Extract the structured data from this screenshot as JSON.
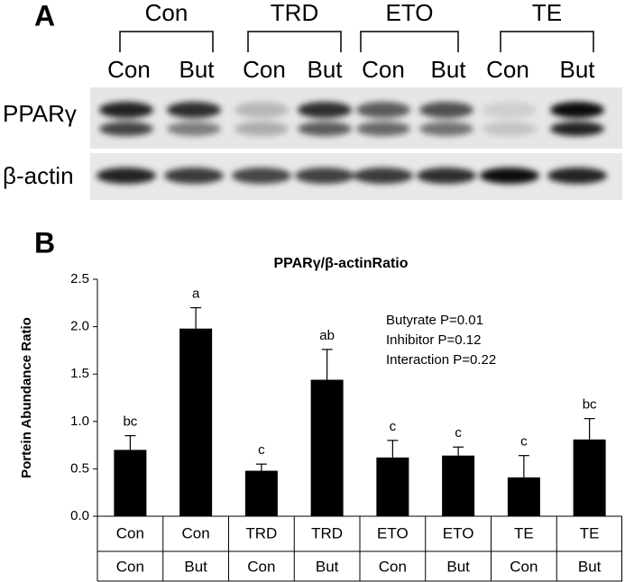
{
  "panel_a": {
    "label": "A",
    "groups": [
      {
        "label": "Con",
        "lanes": [
          "Con",
          "But"
        ]
      },
      {
        "label": "TRD",
        "lanes": [
          "Con",
          "But"
        ]
      },
      {
        "label": "ETO",
        "lanes": [
          "Con",
          "But"
        ]
      },
      {
        "label": "TE",
        "lanes": [
          "Con",
          "But"
        ]
      }
    ],
    "rows": [
      "PPARγ",
      "β-actin"
    ]
  },
  "chart_data": {
    "type": "bar",
    "panel_label": "B",
    "title": "PPARγ/β-actinRatio",
    "y_label": "Portein Abundance Ratio",
    "categories": [
      "Con",
      "Con",
      "TRD",
      "TRD",
      "ETO",
      "ETO",
      "TE",
      "TE"
    ],
    "categories2": [
      "Con",
      "But",
      "Con",
      "But",
      "Con",
      "But",
      "Con",
      "But"
    ],
    "values": [
      0.7,
      1.98,
      0.48,
      1.44,
      0.62,
      0.64,
      0.41,
      0.81
    ],
    "errors": [
      0.15,
      0.22,
      0.07,
      0.32,
      0.18,
      0.09,
      0.23,
      0.22
    ],
    "letters": [
      "bc",
      "a",
      "c",
      "ab",
      "c",
      "c",
      "c",
      "bc"
    ],
    "annotations": [
      "Butyrate P=0.01",
      "Inhibitor P=0.12",
      "Interaction P=0.22"
    ],
    "color": "#000000",
    "ylim": [
      0,
      2.5
    ],
    "yticks": [
      {
        "value": 0,
        "label": "0.0"
      },
      0.5,
      {
        "value": 1,
        "label": "1.0"
      },
      1.5,
      {
        "value": 2,
        "label": "2.0"
      },
      2.5
    ],
    "grid": false
  }
}
